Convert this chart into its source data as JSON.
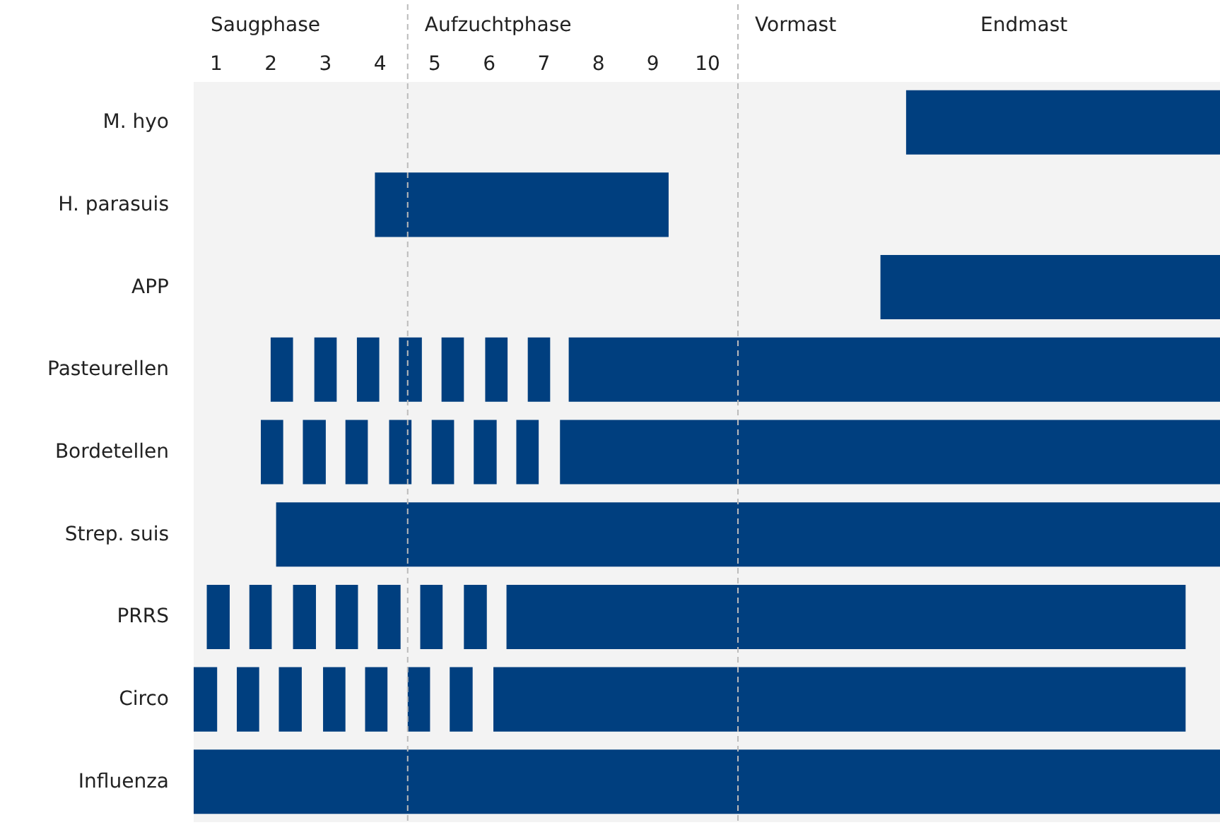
{
  "chart_data": {
    "type": "bar",
    "orientation": "horizontal",
    "categories": [
      "M. hyo",
      "H. parasuis",
      "APP",
      "Pasteurellen",
      "Bordetellen",
      "Strep. suis",
      "PRRS",
      "Circo",
      "Influenza"
    ],
    "xlim": [
      0.6,
      19.4
    ],
    "xticks": [
      1,
      2,
      3,
      4,
      5,
      6,
      7,
      8,
      9,
      10
    ],
    "grid": false,
    "legend": false,
    "series": [
      {
        "color": "#003f7f",
        "base": [
          13.65,
          3.92,
          13.18,
          2.01,
          1.83,
          2.11,
          0.84,
          0.6,
          0.6
        ],
        "values": [
          5.75,
          5.38,
          6.22,
          0.41,
          0.41,
          17.29,
          0.42,
          0.43,
          18.8
        ]
      },
      {
        "color": "#003f7f",
        "base": [
          null,
          null,
          null,
          2.81,
          2.6,
          null,
          1.62,
          1.39,
          null
        ],
        "values": [
          null,
          null,
          null,
          0.41,
          0.42,
          null,
          0.41,
          0.41,
          null
        ]
      },
      {
        "color": "#003f7f",
        "base": [
          null,
          null,
          null,
          3.59,
          3.38,
          null,
          2.42,
          2.16,
          null
        ],
        "values": [
          null,
          null,
          null,
          0.41,
          0.41,
          null,
          0.42,
          0.42,
          null
        ]
      },
      {
        "color": "#003f7f",
        "base": [
          null,
          null,
          null,
          4.36,
          4.18,
          null,
          3.2,
          2.97,
          null
        ],
        "values": [
          null,
          null,
          null,
          0.42,
          0.41,
          null,
          0.41,
          0.41,
          null
        ]
      },
      {
        "color": "#003f7f",
        "base": [
          null,
          null,
          null,
          5.14,
          4.96,
          null,
          3.97,
          3.74,
          null
        ],
        "values": [
          null,
          null,
          null,
          0.41,
          0.41,
          null,
          0.42,
          0.41,
          null
        ]
      },
      {
        "color": "#003f7f",
        "base": [
          null,
          null,
          null,
          5.94,
          5.73,
          null,
          4.75,
          4.52,
          null
        ],
        "values": [
          null,
          null,
          null,
          0.41,
          0.42,
          null,
          0.41,
          0.41,
          null
        ]
      },
      {
        "color": "#003f7f",
        "base": [
          null,
          null,
          null,
          6.72,
          6.51,
          null,
          5.55,
          5.29,
          null
        ],
        "values": [
          null,
          null,
          null,
          0.41,
          0.41,
          null,
          0.42,
          0.42,
          null
        ]
      },
      {
        "color": "#003f7f",
        "base": [
          null,
          null,
          null,
          7.47,
          7.31,
          null,
          6.33,
          6.09,
          null
        ],
        "values": [
          null,
          null,
          null,
          11.93,
          12.09,
          null,
          12.44,
          12.68,
          null
        ]
      }
    ],
    "ref_lines": [
      {
        "axis": "x",
        "value": 4.52,
        "color": "#bbbbbb",
        "line_style": "dashed"
      },
      {
        "axis": "x",
        "value": 10.57,
        "color": "#bbbbbb",
        "line_style": "dashed"
      }
    ],
    "bands": [
      {
        "axis": "x",
        "from": 0.6,
        "to": 4.52,
        "label": "Saugphase",
        "color": "#f3f3f3"
      },
      {
        "axis": "x",
        "from": 4.52,
        "to": 10.57,
        "label": "Aufzuchtphase",
        "color": "#f3f3f3"
      },
      {
        "axis": "x",
        "from": 10.57,
        "to": 14.7,
        "label": "Vormast",
        "color": "#f3f3f3"
      },
      {
        "axis": "x",
        "from": 14.7,
        "to": 19.4,
        "label": "Endmast",
        "color": "#f3f3f3"
      }
    ]
  }
}
